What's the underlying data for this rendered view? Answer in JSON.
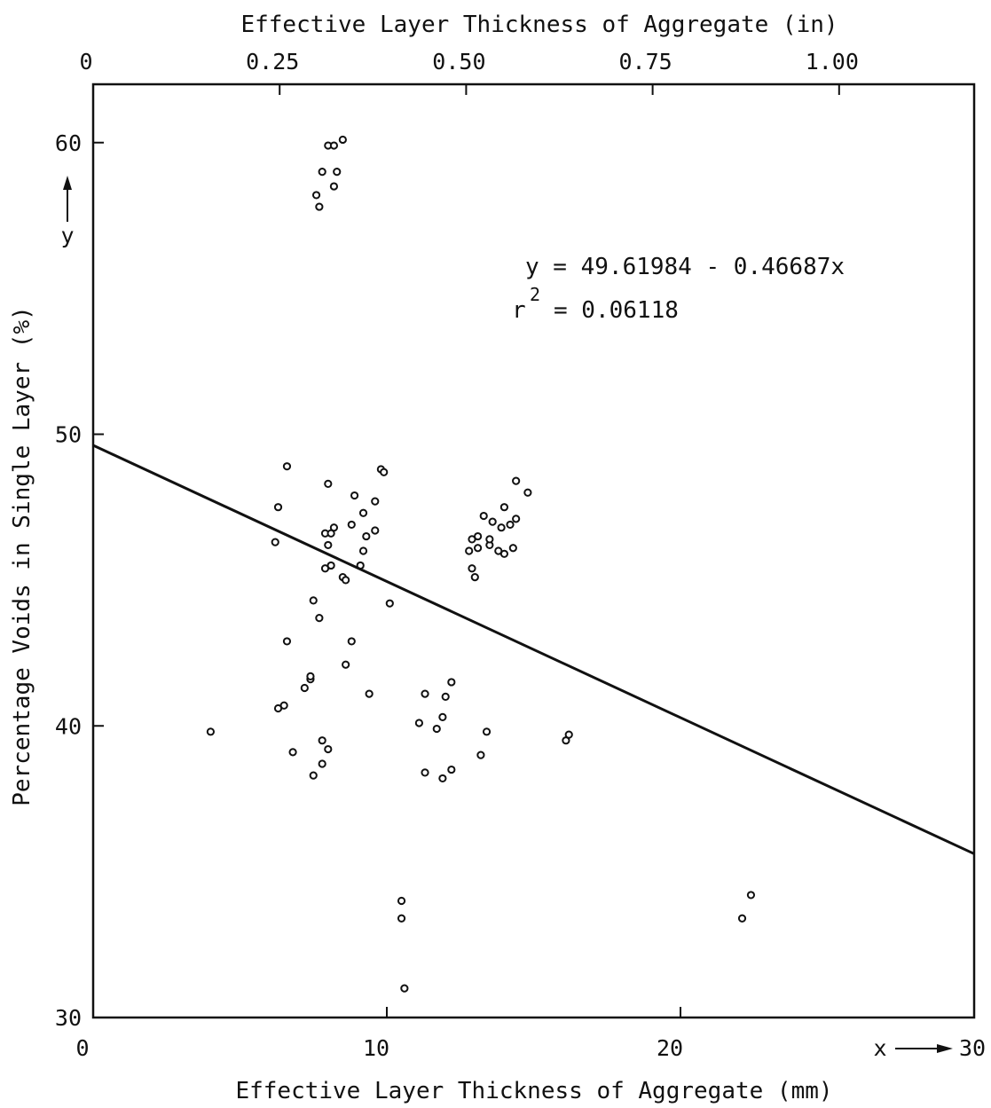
{
  "chart_data": {
    "type": "scatter",
    "title": "",
    "xlabel": "Effective Layer Thickness of Aggregate (mm)",
    "x2label": "Effective Layer Thickness of Aggregate (in)",
    "ylabel": "Percentage Voids in Single Layer (%)",
    "xlim": [
      0,
      30
    ],
    "ylim": [
      30,
      62
    ],
    "x2lim": [
      0,
      1.181
    ],
    "xticks": [
      0,
      10,
      20,
      30
    ],
    "xtick_labels": [
      "0",
      "10",
      "20",
      "30"
    ],
    "x2ticks": [
      0,
      0.25,
      0.5,
      0.75,
      1.0
    ],
    "x2tick_labels": [
      "0",
      "0.25",
      "0.50",
      "0.75",
      "1.00"
    ],
    "yticks": [
      30,
      40,
      50,
      60
    ],
    "ytick_labels": [
      "30",
      "40",
      "50",
      "60"
    ],
    "x_arrow_label": "x",
    "y_arrow_label": "y",
    "grid": false,
    "regression": {
      "equation": "y = 49.61984 - 0.46687x",
      "r2_label": "r",
      "r2_sup": "2",
      "r2_value": "= 0.06118",
      "intercept": 49.61984,
      "slope": -0.46687
    },
    "points": [
      [
        7.6,
        58.2
      ],
      [
        7.7,
        57.8
      ],
      [
        7.8,
        59.0
      ],
      [
        8.0,
        59.9
      ],
      [
        8.2,
        59.9
      ],
      [
        8.5,
        60.1
      ],
      [
        8.3,
        59.0
      ],
      [
        8.2,
        58.5
      ],
      [
        4.0,
        39.8
      ],
      [
        6.2,
        46.3
      ],
      [
        6.3,
        47.5
      ],
      [
        6.6,
        48.9
      ],
      [
        6.3,
        40.6
      ],
      [
        6.5,
        40.7
      ],
      [
        6.6,
        42.9
      ],
      [
        6.8,
        39.1
      ],
      [
        7.2,
        41.3
      ],
      [
        7.4,
        41.6
      ],
      [
        7.4,
        41.7
      ],
      [
        7.5,
        44.3
      ],
      [
        7.5,
        38.3
      ],
      [
        7.7,
        43.7
      ],
      [
        7.8,
        38.7
      ],
      [
        7.8,
        39.5
      ],
      [
        8.0,
        39.2
      ],
      [
        7.9,
        46.6
      ],
      [
        8.0,
        46.2
      ],
      [
        8.0,
        48.3
      ],
      [
        8.1,
        46.6
      ],
      [
        8.2,
        46.8
      ],
      [
        7.9,
        45.4
      ],
      [
        8.1,
        45.5
      ],
      [
        8.5,
        45.1
      ],
      [
        8.6,
        45.0
      ],
      [
        8.8,
        46.9
      ],
      [
        8.6,
        42.1
      ],
      [
        8.8,
        42.9
      ],
      [
        8.9,
        47.9
      ],
      [
        9.2,
        47.3
      ],
      [
        9.3,
        46.5
      ],
      [
        9.1,
        45.5
      ],
      [
        9.2,
        46.0
      ],
      [
        9.4,
        41.1
      ],
      [
        9.6,
        46.7
      ],
      [
        9.6,
        47.7
      ],
      [
        9.8,
        48.8
      ],
      [
        9.9,
        48.7
      ],
      [
        10.1,
        44.2
      ],
      [
        10.5,
        34.0
      ],
      [
        10.5,
        33.4
      ],
      [
        10.6,
        31.0
      ],
      [
        11.1,
        40.1
      ],
      [
        11.3,
        41.1
      ],
      [
        11.3,
        38.4
      ],
      [
        11.7,
        39.9
      ],
      [
        11.9,
        38.2
      ],
      [
        11.9,
        40.3
      ],
      [
        12.0,
        41.0
      ],
      [
        12.2,
        38.5
      ],
      [
        12.2,
        41.5
      ],
      [
        12.8,
        46.0
      ],
      [
        12.9,
        46.4
      ],
      [
        12.9,
        45.4
      ],
      [
        13.0,
        45.1
      ],
      [
        13.1,
        46.5
      ],
      [
        13.1,
        46.1
      ],
      [
        13.2,
        39.0
      ],
      [
        13.3,
        47.2
      ],
      [
        13.4,
        39.8
      ],
      [
        13.5,
        46.2
      ],
      [
        13.5,
        46.4
      ],
      [
        13.6,
        47.0
      ],
      [
        13.8,
        46.0
      ],
      [
        13.9,
        46.8
      ],
      [
        14.0,
        45.9
      ],
      [
        14.0,
        47.5
      ],
      [
        14.2,
        46.9
      ],
      [
        14.3,
        46.1
      ],
      [
        14.4,
        47.1
      ],
      [
        14.4,
        48.4
      ],
      [
        14.8,
        48.0
      ],
      [
        16.1,
        39.5
      ],
      [
        16.2,
        39.7
      ],
      [
        22.1,
        33.4
      ],
      [
        22.4,
        34.2
      ]
    ]
  }
}
